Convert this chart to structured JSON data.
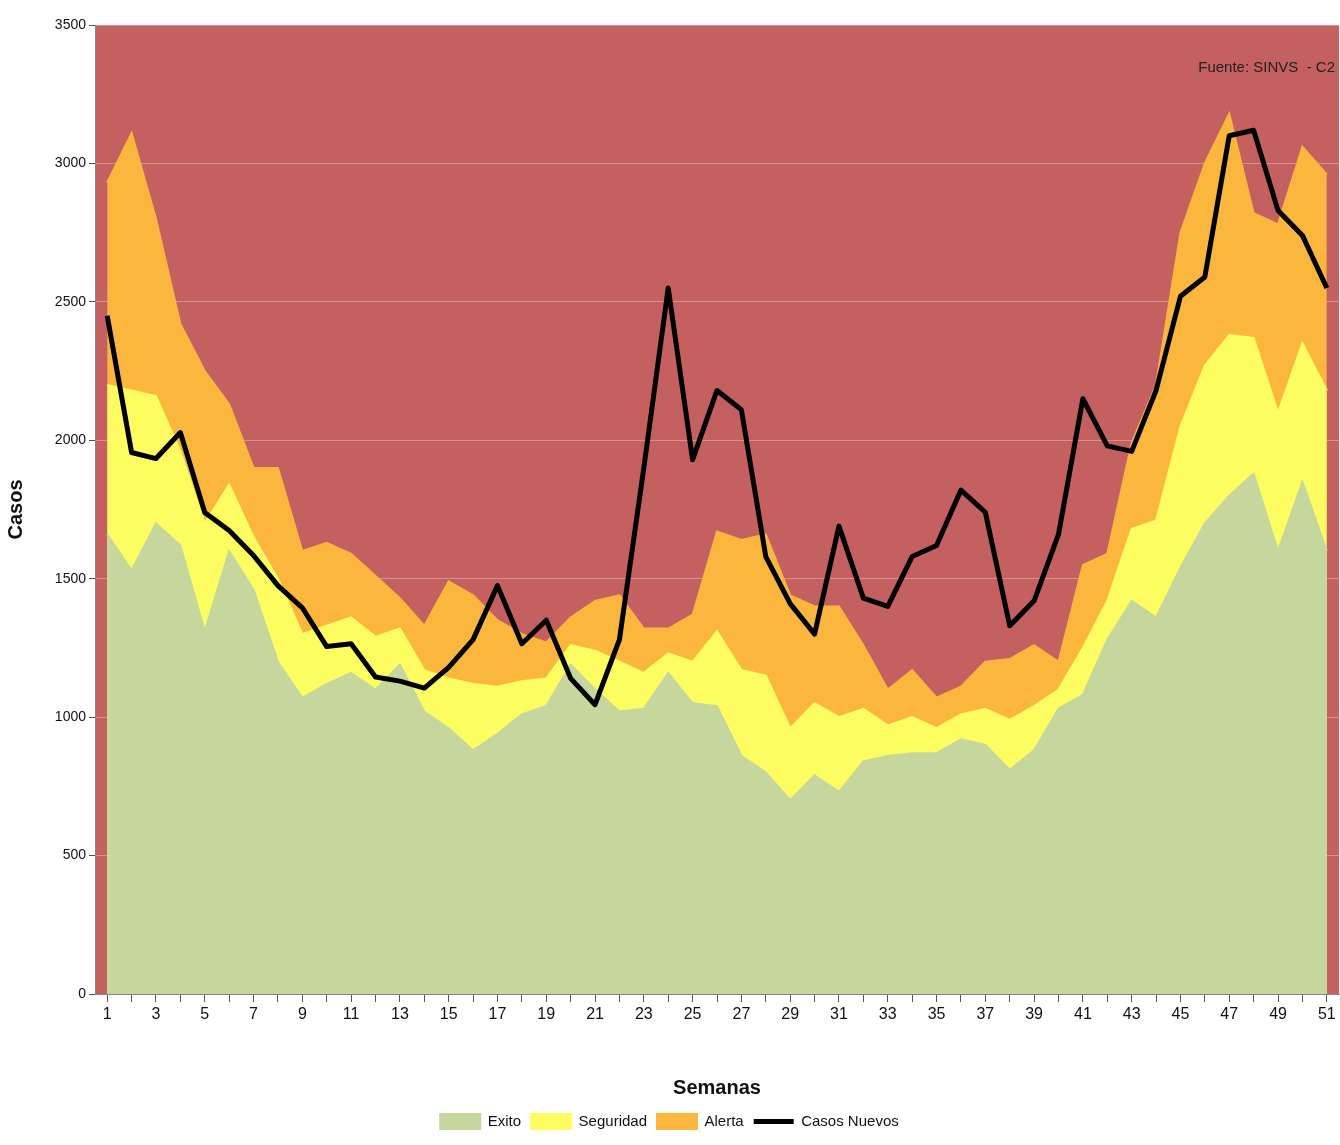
{
  "chart_data": {
    "type": "area",
    "xlabel": "Semanas",
    "ylabel": "Casos",
    "annotations": [
      "Fuente: SINVS  - C2"
    ],
    "x": [
      1,
      2,
      3,
      4,
      5,
      6,
      7,
      8,
      9,
      10,
      11,
      12,
      13,
      14,
      15,
      16,
      17,
      18,
      19,
      20,
      21,
      22,
      23,
      24,
      25,
      26,
      27,
      28,
      29,
      30,
      31,
      32,
      33,
      34,
      35,
      36,
      37,
      38,
      39,
      40,
      41,
      42,
      43,
      44,
      45,
      46,
      47,
      48,
      49,
      50,
      51
    ],
    "xlim": [
      0.5,
      51.5
    ],
    "xticks": [
      1,
      {
        "value": 2,
        "label": null
      },
      3,
      {
        "value": 4,
        "label": null
      },
      5,
      {
        "value": 6,
        "label": null
      },
      7,
      {
        "value": 8,
        "label": null
      },
      9,
      {
        "value": 10,
        "label": null
      },
      11,
      {
        "value": 12,
        "label": null
      },
      13,
      {
        "value": 14,
        "label": null
      },
      15,
      {
        "value": 16,
        "label": null
      },
      17,
      {
        "value": 18,
        "label": null
      },
      19,
      {
        "value": 20,
        "label": null
      },
      21,
      {
        "value": 22,
        "label": null
      },
      23,
      {
        "value": 24,
        "label": null
      },
      25,
      {
        "value": 26,
        "label": null
      },
      27,
      {
        "value": 28,
        "label": null
      },
      29,
      {
        "value": 30,
        "label": null
      },
      31,
      {
        "value": 32,
        "label": null
      },
      33,
      {
        "value": 34,
        "label": null
      },
      35,
      {
        "value": 36,
        "label": null
      },
      37,
      {
        "value": 38,
        "label": null
      },
      39,
      {
        "value": 40,
        "label": null
      },
      41,
      {
        "value": 42,
        "label": null
      },
      43,
      {
        "value": 44,
        "label": null
      },
      45,
      {
        "value": 46,
        "label": null
      },
      47,
      {
        "value": 48,
        "label": null
      },
      49,
      {
        "value": 50,
        "label": null
      },
      51
    ],
    "ylim": [
      0,
      3500
    ],
    "yticks": [
      0,
      500,
      1000,
      1500,
      2000,
      2500,
      3000,
      3500
    ],
    "grid": "y",
    "legend": "bottom",
    "marker": "none",
    "line_style": "solid",
    "series": [
      {
        "name": "Exito",
        "color": "#c5d79d",
        "values": [
          1660,
          1530,
          1700,
          1620,
          1310,
          1600,
          1460,
          1200,
          1070,
          1120,
          1160,
          1100,
          1190,
          1020,
          960,
          880,
          940,
          1010,
          1040,
          1190,
          1100,
          1020,
          1030,
          1160,
          1050,
          1040,
          860,
          800,
          700,
          790,
          730,
          840,
          860,
          870,
          870,
          920,
          900,
          810,
          880,
          1030,
          1080,
          1280,
          1420,
          1360,
          1540,
          1700,
          1800,
          1880,
          1600,
          1850,
          1600
        ]
      },
      {
        "name": "Seguridad",
        "color": "#fdfd62",
        "values": [
          2200,
          2180,
          2160,
          1960,
          1700,
          1840,
          1650,
          1500,
          1300,
          1330,
          1360,
          1290,
          1320,
          1170,
          1140,
          1120,
          1110,
          1130,
          1140,
          1260,
          1240,
          1200,
          1160,
          1230,
          1200,
          1310,
          1170,
          1150,
          960,
          1050,
          1000,
          1030,
          970,
          1000,
          960,
          1010,
          1030,
          990,
          1040,
          1100,
          1250,
          1420,
          1680,
          1710,
          2050,
          2270,
          2380,
          2370,
          2100,
          2350,
          2180
        ]
      },
      {
        "name": "Alerta",
        "color": "#fbb63e",
        "values": [
          2930,
          3110,
          2800,
          2420,
          2250,
          2130,
          1900,
          1900,
          1600,
          1630,
          1590,
          1510,
          1430,
          1330,
          1490,
          1440,
          1350,
          1300,
          1270,
          1360,
          1420,
          1440,
          1320,
          1320,
          1370,
          1670,
          1640,
          1660,
          1440,
          1400,
          1400,
          1260,
          1100,
          1170,
          1070,
          1110,
          1200,
          1210,
          1260,
          1200,
          1550,
          1590,
          1990,
          2200,
          2750,
          3000,
          3180,
          2820,
          2780,
          3060,
          2960
        ]
      },
      {
        "name": "Casos Nuevos",
        "type": "line",
        "color": "#000000",
        "values": [
          2450,
          1956,
          1934,
          2028,
          1739,
          1674,
          1584,
          1475,
          1395,
          1255,
          1265,
          1145,
          1130,
          1105,
          1180,
          1280,
          1475,
          1265,
          1350,
          1140,
          1045,
          1280,
          1900,
          2550,
          1930,
          2180,
          2110,
          1580,
          1410,
          1300,
          1690,
          1430,
          1400,
          1580,
          1620,
          1820,
          1740,
          1330,
          1420,
          1660,
          2150,
          1980,
          1960,
          2180,
          2520,
          2590,
          3100,
          3120,
          2830,
          2740,
          2550
        ]
      }
    ]
  }
}
